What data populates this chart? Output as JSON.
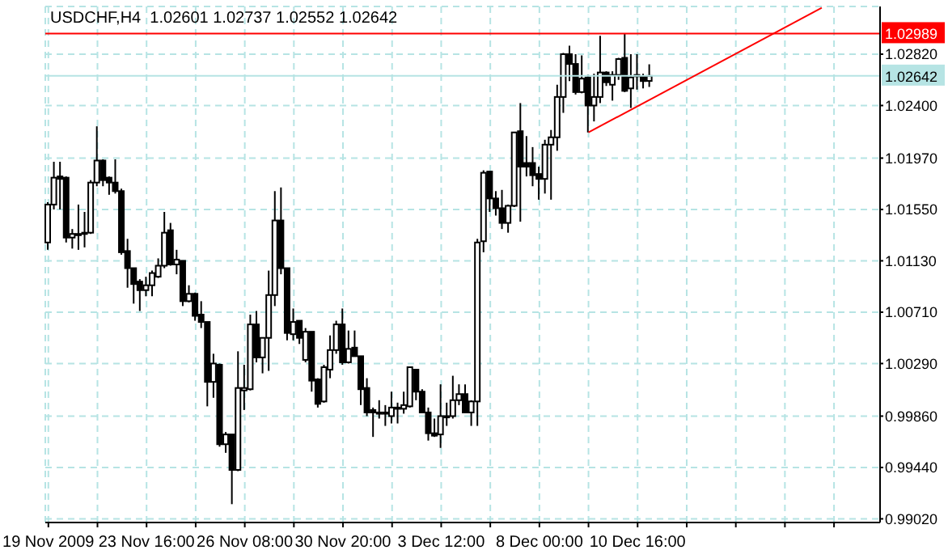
{
  "chart_data": {
    "type": "candlestick",
    "title": "USDCHF,H4  1.02601 1.02737 1.02552 1.02642",
    "categories": [
      "19 Nov 2009",
      null,
      null,
      null,
      null,
      null,
      null,
      null,
      null,
      null,
      null,
      null,
      null,
      null,
      null,
      null,
      "23 Nov 16:00",
      null,
      null,
      null,
      null,
      null,
      null,
      null,
      null,
      null,
      null,
      null,
      null,
      null,
      null,
      null,
      "26 Nov 08:00",
      null,
      null,
      null,
      null,
      null,
      null,
      null,
      null,
      null,
      null,
      null,
      null,
      null,
      null,
      null,
      "30 Nov 20:00",
      null,
      null,
      null,
      null,
      null,
      null,
      null,
      null,
      null,
      null,
      null,
      null,
      null,
      null,
      null,
      "3 Dec 12:00",
      null,
      null,
      null,
      null,
      null,
      null,
      null,
      null,
      null,
      null,
      null,
      null,
      null,
      null,
      null,
      "8 Dec 00:00",
      null,
      null,
      null,
      null,
      null,
      null,
      null,
      null,
      null,
      null,
      null,
      null,
      null,
      null,
      null,
      "10 Dec 16:00",
      null,
      null,
      null,
      null,
      null,
      null,
      null,
      null,
      null,
      null,
      null,
      null,
      null,
      null,
      null,
      null,
      null,
      null,
      null,
      null,
      null,
      null,
      null,
      null,
      null,
      null,
      null,
      null,
      null,
      null,
      null,
      null,
      null,
      null,
      null,
      null,
      null,
      null,
      null
    ],
    "ohlc": [
      [
        1.0128,
        1.0161,
        1.0122,
        1.0159
      ],
      [
        1.0159,
        1.0194,
        1.0155,
        1.0181
      ],
      [
        1.0182,
        1.0194,
        1.0155,
        1.018
      ],
      [
        1.0181,
        1.0182,
        1.0128,
        1.0132
      ],
      [
        1.0132,
        1.0139,
        1.0123,
        1.0135
      ],
      [
        1.0135,
        1.0159,
        1.0122,
        1.0135
      ],
      [
        1.0135,
        1.0153,
        1.0124,
        1.0136
      ],
      [
        1.0136,
        1.0179,
        1.0135,
        1.0177
      ],
      [
        1.0177,
        1.0223,
        1.0174,
        1.0195
      ],
      [
        1.0195,
        1.0196,
        1.0174,
        1.0179
      ],
      [
        1.0181,
        1.0182,
        1.0167,
        1.0177
      ],
      [
        1.0177,
        1.0196,
        1.0168,
        1.017
      ],
      [
        1.017,
        1.0172,
        1.0118,
        1.012
      ],
      [
        1.0121,
        1.0131,
        1.0091,
        1.0107
      ],
      [
        1.0107,
        1.0107,
        1.0078,
        1.0094
      ],
      [
        1.0096,
        1.0098,
        1.0072,
        1.0089
      ],
      [
        1.0089,
        1.01,
        1.0084,
        1.0093
      ],
      [
        1.0093,
        1.0105,
        1.0084,
        1.0103
      ],
      [
        1.01,
        1.0115,
        1.0099,
        1.0109
      ],
      [
        1.0109,
        1.0153,
        1.0107,
        1.0136
      ],
      [
        1.0138,
        1.0144,
        1.0109,
        1.011
      ],
      [
        1.011,
        1.0122,
        1.0102,
        1.0114
      ],
      [
        1.0113,
        1.0113,
        1.0076,
        1.008
      ],
      [
        1.008,
        1.0093,
        1.0079,
        1.0086
      ],
      [
        1.0086,
        1.0087,
        1.0064,
        1.0068
      ],
      [
        1.0069,
        1.008,
        1.0058,
        1.0063
      ],
      [
        1.0063,
        1.0063,
        0.9994,
        1.0014
      ],
      [
        1.0014,
        1.0037,
        1.0001,
        1.0029
      ],
      [
        1.0028,
        1.0029,
        0.9961,
        0.9963
      ],
      [
        0.9963,
        0.9973,
        0.9956,
        0.9971
      ],
      [
        0.9971,
        0.9971,
        0.9914,
        0.9942
      ],
      [
        0.9942,
        1.0039,
        0.9941,
        1.0009
      ],
      [
        1.0007,
        1.0028,
        0.9991,
        1.0009
      ],
      [
        1.0008,
        1.0069,
        1.0007,
        1.0061
      ],
      [
        1.0061,
        1.0072,
        1.003,
        1.0034
      ],
      [
        1.0034,
        1.005,
        1.0021,
        1.005
      ],
      [
        1.005,
        1.0105,
        1.0023,
        1.0085
      ],
      [
        1.0085,
        1.017,
        1.0076,
        1.0146
      ],
      [
        1.0146,
        1.0173,
        1.0102,
        1.0107
      ],
      [
        1.0107,
        1.0107,
        1.0048,
        1.0054
      ],
      [
        1.0053,
        1.0074,
        1.0048,
        1.0063
      ],
      [
        1.0064,
        1.0064,
        1.0045,
        1.005
      ],
      [
        1.0032,
        1.0058,
        1.003,
        1.0055
      ],
      [
        1.0055,
        1.0055,
        1.0006,
        1.0015
      ],
      [
        1.0016,
        1.0017,
        0.9993,
        0.9996
      ],
      [
        0.9998,
        1.0028,
        0.9997,
        1.0026
      ],
      [
        1.0024,
        1.0052,
        1.0017,
        1.004
      ],
      [
        1.004,
        1.0064,
        1.0037,
        1.0061
      ],
      [
        1.0061,
        1.0074,
        1.0028,
        1.003
      ],
      [
        1.003,
        1.0056,
        1.0029,
        1.0041
      ],
      [
        1.0042,
        1.0056,
        1.0035,
        1.0035
      ],
      [
        1.0035,
        1.0035,
        0.9995,
        1.0008
      ],
      [
        1.0009,
        1.0017,
        0.9986,
        0.9989
      ],
      [
        0.9991,
        0.9993,
        0.9969,
        0.9989
      ],
      [
        0.9989,
        0.9999,
        0.9984,
        0.9989
      ],
      [
        0.9989,
        0.9995,
        0.9978,
        0.9989
      ],
      [
        0.9986,
        1.0006,
        0.998,
        0.9993
      ],
      [
        0.9993,
        0.9997,
        0.998,
        0.9993
      ],
      [
        0.9992,
        1.0006,
        0.9988,
        0.9995
      ],
      [
        0.9994,
        1.0026,
        0.9993,
        1.0026
      ],
      [
        1.0024,
        1.0024,
        0.9999,
        1.0006
      ],
      [
        1.0006,
        1.0008,
        0.9989,
        0.9989
      ],
      [
        0.9989,
        0.9993,
        0.9966,
        0.9972
      ],
      [
        0.9972,
        0.9984,
        0.9969,
        0.997
      ],
      [
        0.9971,
        1.0012,
        0.996,
        0.9986
      ],
      [
        0.9986,
        0.9997,
        0.9978,
        0.9986
      ],
      [
        0.9986,
        1.0019,
        0.9984,
        0.9999
      ],
      [
        0.9999,
        1.0012,
        0.9995,
        1.0004
      ],
      [
        1.0004,
        1.0012,
        0.9989,
        0.9989
      ],
      [
        0.9989,
        0.9999,
        0.9978,
        0.9998
      ],
      [
        0.9998,
        1.0131,
        0.9978,
        1.0128
      ],
      [
        1.0129,
        1.0187,
        1.012,
        1.0185
      ],
      [
        1.0186,
        1.0186,
        1.0153,
        1.0164
      ],
      [
        1.0164,
        1.017,
        1.015,
        1.0156
      ],
      [
        1.0156,
        1.0171,
        1.0139,
        1.0144
      ],
      [
        1.0144,
        1.0159,
        1.0136,
        1.0158
      ],
      [
        1.0158,
        1.0218,
        1.0157,
        1.0218
      ],
      [
        1.0219,
        1.0242,
        1.0145,
        1.019
      ],
      [
        1.0193,
        1.0215,
        1.0182,
        1.019
      ],
      [
        1.0193,
        1.0206,
        1.0174,
        1.0183
      ],
      [
        1.0184,
        1.019,
        1.0163,
        1.018
      ],
      [
        1.018,
        1.0212,
        1.0168,
        1.0208
      ],
      [
        1.0208,
        1.022,
        1.0163,
        1.0214
      ],
      [
        1.0214,
        1.0257,
        1.0203,
        1.0247
      ],
      [
        1.0247,
        1.0283,
        1.0234,
        1.0282
      ],
      [
        1.0282,
        1.0289,
        1.026,
        1.0274
      ],
      [
        1.0274,
        1.0282,
        1.0249,
        1.0251
      ],
      [
        1.0251,
        1.0281,
        1.025,
        1.0262
      ],
      [
        1.0263,
        1.0265,
        1.0218,
        1.024
      ],
      [
        1.024,
        1.0266,
        1.0227,
        1.0247
      ],
      [
        1.0247,
        1.0297,
        1.0242,
        1.0267
      ],
      [
        1.0267,
        1.0268,
        1.0256,
        1.0259
      ],
      [
        1.0257,
        1.0268,
        1.0244,
        1.0265
      ],
      [
        1.0265,
        1.0279,
        1.0261,
        1.0278
      ],
      [
        1.0279,
        1.0299,
        1.0251,
        1.0252
      ],
      [
        1.0254,
        1.0282,
        1.0238,
        1.0263
      ],
      [
        1.0265,
        1.0282,
        1.0253,
        1.0265
      ],
      [
        1.0264,
        1.0266,
        1.0254,
        1.026
      ],
      [
        1.02601,
        1.02737,
        1.02552,
        1.02642
      ],
      null,
      null,
      null,
      null,
      null,
      null,
      null,
      null,
      null,
      null,
      null,
      null,
      null,
      null,
      null,
      null,
      null,
      null,
      null,
      null,
      null,
      null,
      null,
      null,
      null,
      null,
      null,
      null,
      null,
      null,
      null,
      null,
      null,
      null,
      null,
      null,
      null
    ],
    "series": [
      {
        "type": "line",
        "color": "#ff0000",
        "values": [
          null,
          null,
          null,
          null,
          null,
          null,
          null,
          null,
          null,
          null,
          null,
          null,
          null,
          null,
          null,
          null,
          null,
          null,
          null,
          null,
          null,
          null,
          null,
          null,
          null,
          null,
          null,
          null,
          null,
          null,
          null,
          null,
          null,
          null,
          null,
          null,
          null,
          null,
          null,
          null,
          null,
          null,
          null,
          null,
          null,
          null,
          null,
          null,
          null,
          null,
          null,
          null,
          null,
          null,
          null,
          null,
          null,
          null,
          null,
          null,
          null,
          null,
          null,
          null,
          null,
          null,
          null,
          null,
          null,
          null,
          null,
          null,
          null,
          null,
          null,
          null,
          null,
          null,
          null,
          null,
          null,
          null,
          null,
          null,
          null,
          null,
          null,
          null,
          1.0218,
          null,
          null,
          null,
          null,
          null,
          null,
          null,
          null,
          null,
          null,
          null,
          null,
          null,
          null,
          null,
          null,
          null,
          null,
          null,
          null,
          null,
          null,
          null,
          null,
          null,
          null,
          null,
          null,
          null,
          null,
          null,
          null,
          null,
          null,
          null,
          null,
          null,
          1.032,
          null,
          null,
          null,
          null,
          null,
          null,
          null,
          null,
          null
        ]
      }
    ],
    "ylim": [
      0.9899,
      1.0321
    ],
    "yticks": [
      {
        "value": 0.9902,
        "label": "0.99020"
      },
      {
        "value": 0.9944,
        "label": "0.99440"
      },
      {
        "value": 0.9986,
        "label": "0.99860"
      },
      {
        "value": 1.0029,
        "label": "1.00290"
      },
      {
        "value": 1.0071,
        "label": "1.00710"
      },
      {
        "value": 1.0113,
        "label": "1.01130"
      },
      {
        "value": 1.0155,
        "label": "1.01550"
      },
      {
        "value": 1.0197,
        "label": "1.01970"
      },
      {
        "value": 1.024,
        "label": "1.02400"
      },
      {
        "value": 1.0282,
        "label": "1.02820"
      }
    ],
    "ref_lines": [
      {
        "axis": "y",
        "value": 1.02989,
        "label": "1.02989",
        "color": "#ff0000"
      },
      {
        "axis": "y",
        "value": 1.02642,
        "label": "1.02642",
        "color": "#b6e4e4"
      }
    ],
    "grid": true
  }
}
